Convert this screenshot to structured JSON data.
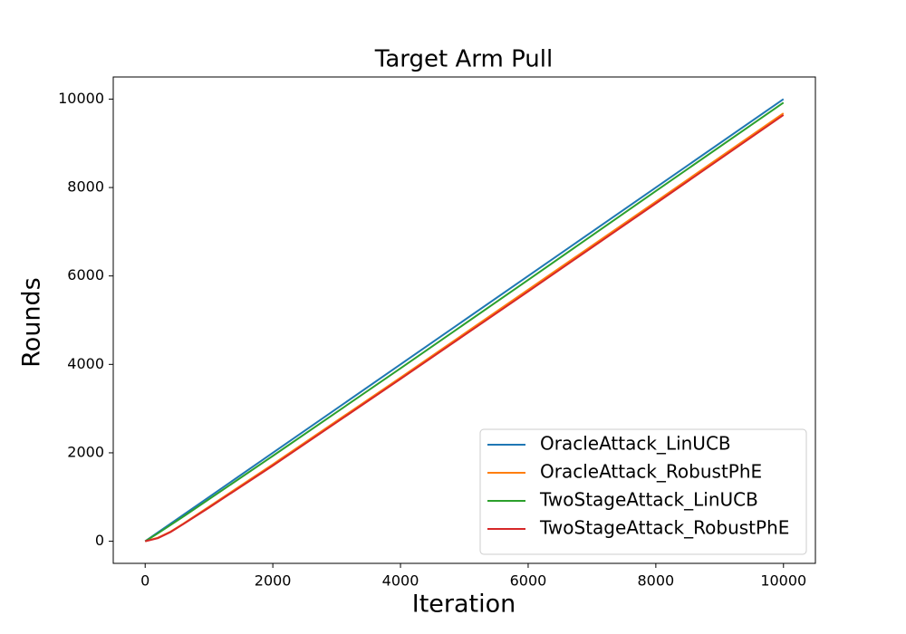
{
  "chart_data": {
    "type": "line",
    "title": "Target Arm Pull",
    "xlabel": "Iteration",
    "ylabel": "Rounds",
    "x": [
      0,
      200,
      400,
      600,
      1000,
      2000,
      4000,
      6000,
      8000,
      10000
    ],
    "series": [
      {
        "name": "OracleAttack_LinUCB",
        "color": "#1f77b4",
        "values": [
          0,
          200,
          400,
          600,
          1000,
          2000,
          4000,
          6000,
          8000,
          10000
        ]
      },
      {
        "name": "OracleAttack_RobustPhE",
        "color": "#ff7f0e",
        "values": [
          0,
          80,
          220,
          400,
          780,
          1740,
          3700,
          5690,
          7680,
          9680
        ]
      },
      {
        "name": "TwoStageAttack_LinUCB",
        "color": "#2ca02c",
        "values": [
          0,
          180,
          370,
          560,
          950,
          1930,
          3910,
          5910,
          7920,
          9920
        ]
      },
      {
        "name": "TwoStageAttack_RobustPhE",
        "color": "#d62728",
        "values": [
          0,
          70,
          210,
          390,
          760,
          1710,
          3670,
          5650,
          7640,
          9640
        ]
      }
    ],
    "xlim": [
      -500,
      10500
    ],
    "xticks": [
      0,
      2000,
      4000,
      6000,
      8000,
      10000
    ],
    "ylim": [
      -500,
      10500
    ],
    "yticks": [
      0,
      2000,
      4000,
      6000,
      8000,
      10000
    ],
    "legend": "lower right"
  }
}
